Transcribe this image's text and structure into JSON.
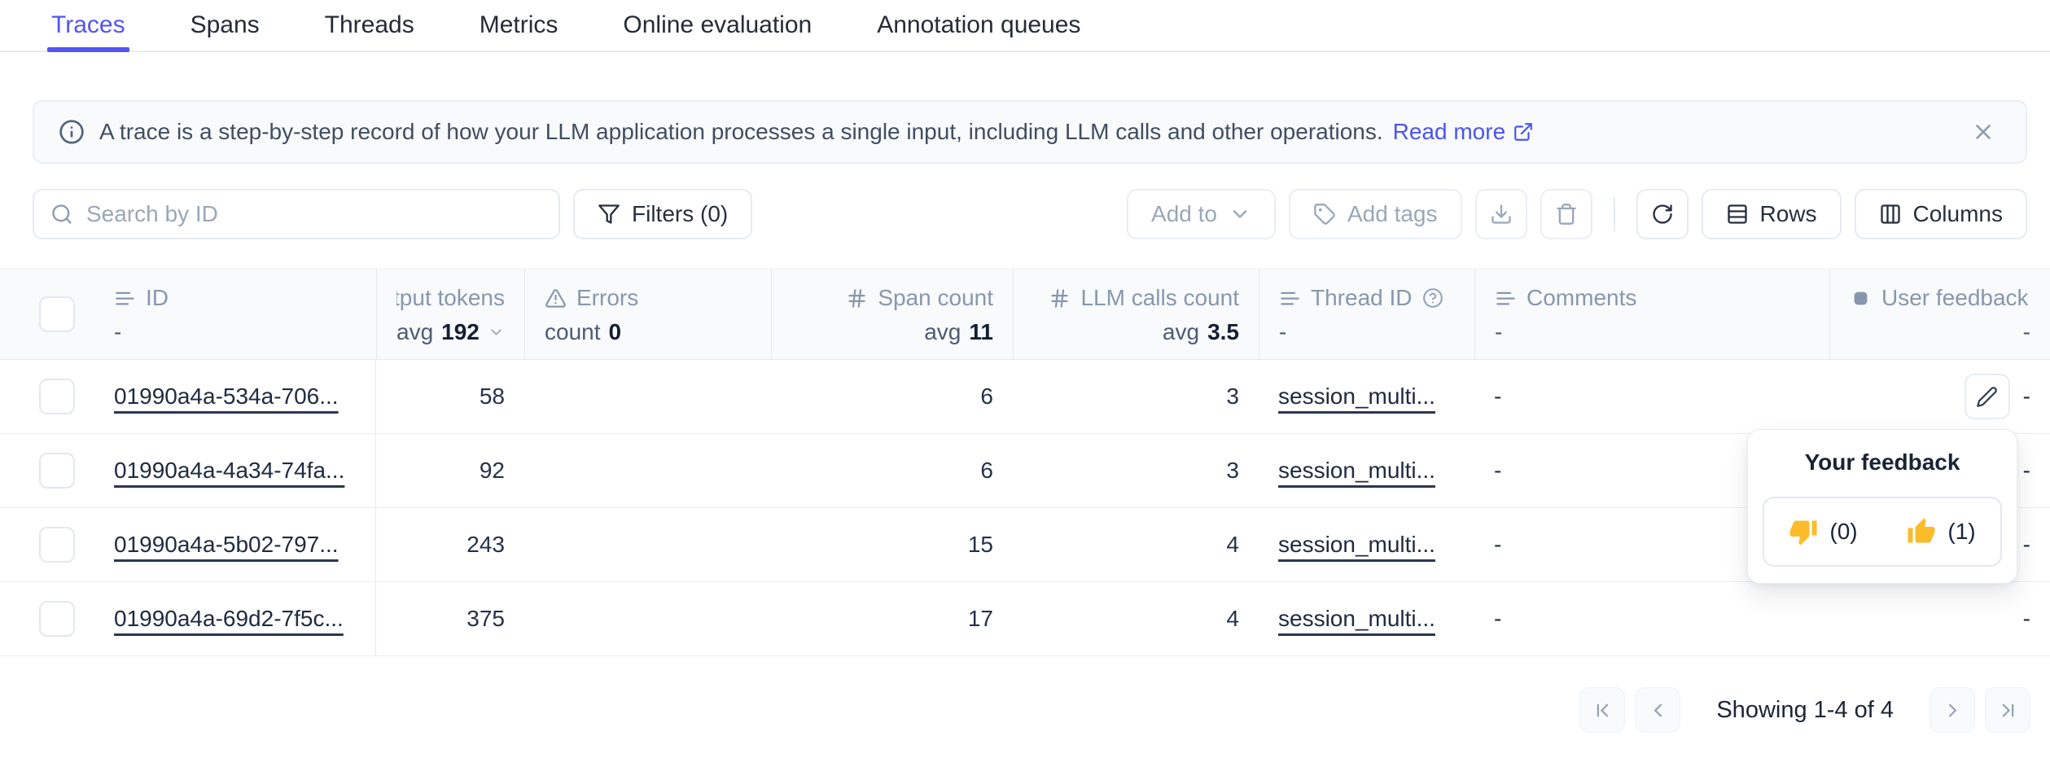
{
  "colors": {
    "accent": "#5155F5",
    "link": "#4A54EB",
    "emoji_yellow": "#FBBC2C"
  },
  "tabs": {
    "active_index": 0,
    "items": [
      "Traces",
      "Spans",
      "Threads",
      "Metrics",
      "Online evaluation",
      "Annotation queues"
    ]
  },
  "banner": {
    "text": "A trace is a step-by-step record of how your LLM application processes a single input, including LLM calls and other operations.",
    "link_label": "Read more"
  },
  "toolbar": {
    "search_placeholder": "Search by ID",
    "filters_label": "Filters (0)",
    "add_to_label": "Add to",
    "add_tags_label": "Add tags",
    "rows_label": "Rows",
    "columns_label": "Columns"
  },
  "table": {
    "columns": [
      {
        "key": "id",
        "icon": "text",
        "label": "ID",
        "stat_prefix": "",
        "stat_value": "-",
        "label_align": "left",
        "stat_align": "left"
      },
      {
        "key": "output_tokens",
        "icon": "",
        "label": "tput tokens",
        "stat_prefix": "avg",
        "stat_value": "192",
        "chevron": true,
        "label_align": "right",
        "stat_align": "right"
      },
      {
        "key": "errors",
        "icon": "warning",
        "label": "Errors",
        "stat_prefix": "count",
        "stat_value": "0",
        "label_align": "left",
        "stat_align": "left"
      },
      {
        "key": "span_count",
        "icon": "hash",
        "label": "Span count",
        "stat_prefix": "avg",
        "stat_value": "11",
        "label_align": "right",
        "stat_align": "right"
      },
      {
        "key": "llm_calls_count",
        "icon": "hash",
        "label": "LLM calls count",
        "stat_prefix": "avg",
        "stat_value": "3.5",
        "label_align": "right",
        "stat_align": "right"
      },
      {
        "key": "thread_id",
        "icon": "text",
        "label": "Thread ID",
        "help": true,
        "stat_prefix": "",
        "stat_value": "-",
        "label_align": "left",
        "stat_align": "left"
      },
      {
        "key": "comments",
        "icon": "text",
        "label": "Comments",
        "stat_prefix": "",
        "stat_value": "-",
        "label_align": "left",
        "stat_align": "left"
      },
      {
        "key": "user_feedback",
        "icon": "square",
        "label": "User feedback",
        "stat_prefix": "",
        "stat_value": "-",
        "label_align": "left",
        "stat_align": "right"
      }
    ],
    "rows": [
      {
        "id": "01990a4a-534a-706...",
        "output_tokens": "58",
        "errors": "",
        "span_count": "6",
        "llm_calls_count": "3",
        "thread_id": "session_multi...",
        "comments": "-",
        "user_feedback": "-",
        "edit_button": true
      },
      {
        "id": "01990a4a-4a34-74fa...",
        "output_tokens": "92",
        "errors": "",
        "span_count": "6",
        "llm_calls_count": "3",
        "thread_id": "session_multi...",
        "comments": "-",
        "user_feedback": "-"
      },
      {
        "id": "01990a4a-5b02-797...",
        "output_tokens": "243",
        "errors": "",
        "span_count": "15",
        "llm_calls_count": "4",
        "thread_id": "session_multi...",
        "comments": "-",
        "user_feedback": "-"
      },
      {
        "id": "01990a4a-69d2-7f5c...",
        "output_tokens": "375",
        "errors": "",
        "span_count": "17",
        "llm_calls_count": "4",
        "thread_id": "session_multi...",
        "comments": "-",
        "user_feedback": "-"
      }
    ]
  },
  "feedback_popover": {
    "title": "Your feedback",
    "thumbs_down_count": "(0)",
    "thumbs_up_count": "(1)"
  },
  "pagination": {
    "summary": "Showing 1-4 of 4"
  }
}
